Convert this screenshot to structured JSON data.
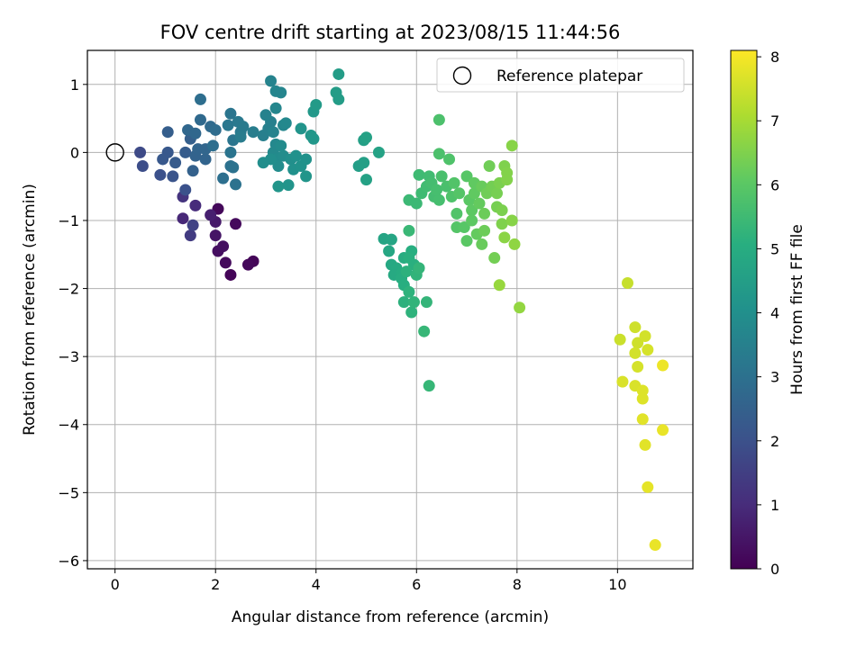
{
  "chart_data": {
    "type": "scatter",
    "title": "FOV centre drift starting at 2023/08/15 11:44:56",
    "xlabel": "Angular distance from reference (arcmin)",
    "ylabel": "Rotation from reference (arcmin)",
    "xlim": [
      -0.55,
      11.5
    ],
    "ylim": [
      -6.12,
      1.5
    ],
    "xticks": [
      0,
      2,
      4,
      6,
      8,
      10
    ],
    "yticks": [
      1,
      0,
      -1,
      -2,
      -3,
      -4,
      -5,
      -6
    ],
    "xtick_labels": [
      "0",
      "2",
      "4",
      "6",
      "8",
      "10"
    ],
    "ytick_labels": [
      "1",
      "0",
      "−1",
      "−2",
      "−3",
      "−4",
      "−5",
      "−6"
    ],
    "grid": true,
    "legend": {
      "placement": "top-right",
      "entries": [
        {
          "label": "Reference platepar",
          "marker": "open-circle"
        }
      ]
    },
    "colorbar": {
      "label": "Hours from first FF file",
      "colormap": "viridis",
      "range": [
        0,
        8.1
      ],
      "ticks": [
        0,
        1,
        2,
        3,
        4,
        5,
        6,
        7,
        8
      ],
      "tick_labels": [
        "0",
        "1",
        "2",
        "3",
        "4",
        "5",
        "6",
        "7",
        "8"
      ]
    },
    "reference_point": {
      "x": 0,
      "y": 0
    },
    "points": [
      [
        2.05,
        -0.83,
        0.15
      ],
      [
        2.4,
        -1.05,
        0.2
      ],
      [
        2.3,
        -1.8,
        0.1
      ],
      [
        2.75,
        -1.6,
        0.1
      ],
      [
        2.65,
        -1.65,
        0.15
      ],
      [
        2.2,
        -1.62,
        0.2
      ],
      [
        2.05,
        -1.45,
        0.3
      ],
      [
        2.15,
        -1.38,
        0.35
      ],
      [
        2.0,
        -1.22,
        0.45
      ],
      [
        2.0,
        -1.02,
        0.55
      ],
      [
        1.9,
        -0.92,
        0.7
      ],
      [
        1.35,
        -0.97,
        0.9
      ],
      [
        1.6,
        -0.78,
        1.0
      ],
      [
        1.35,
        -0.65,
        1.2
      ],
      [
        1.5,
        -1.22,
        1.4
      ],
      [
        1.55,
        -1.07,
        1.6
      ],
      [
        0.5,
        0.0,
        1.8
      ],
      [
        0.55,
        -0.2,
        1.9
      ],
      [
        0.9,
        -0.33,
        2.0
      ],
      [
        1.4,
        -0.55,
        2.0
      ],
      [
        1.15,
        -0.35,
        2.1
      ],
      [
        0.95,
        -0.1,
        2.2
      ],
      [
        1.05,
        0.0,
        2.2
      ],
      [
        1.2,
        -0.15,
        2.3
      ],
      [
        1.4,
        0.0,
        2.35
      ],
      [
        1.05,
        0.3,
        2.4
      ],
      [
        1.5,
        0.2,
        2.45
      ],
      [
        1.55,
        -0.27,
        2.5
      ],
      [
        1.6,
        -0.05,
        2.55
      ],
      [
        1.65,
        0.05,
        2.6
      ],
      [
        1.8,
        -0.1,
        2.6
      ],
      [
        1.8,
        0.05,
        2.65
      ],
      [
        1.45,
        0.33,
        2.7
      ],
      [
        1.6,
        0.28,
        2.7
      ],
      [
        1.7,
        0.48,
        2.75
      ],
      [
        1.9,
        0.38,
        2.8
      ],
      [
        2.0,
        0.33,
        2.85
      ],
      [
        1.95,
        0.1,
        2.9
      ],
      [
        1.7,
        0.78,
        2.9
      ],
      [
        2.15,
        -0.38,
        2.95
      ],
      [
        2.3,
        -0.2,
        3.0
      ],
      [
        2.35,
        -0.22,
        3.05
      ],
      [
        2.4,
        -0.47,
        3.05
      ],
      [
        2.3,
        0.0,
        3.1
      ],
      [
        2.35,
        0.18,
        3.15
      ],
      [
        2.3,
        0.57,
        3.15
      ],
      [
        2.25,
        0.4,
        3.2
      ],
      [
        2.45,
        0.45,
        3.25
      ],
      [
        2.5,
        0.3,
        3.25
      ],
      [
        2.55,
        0.38,
        3.3
      ],
      [
        2.5,
        0.23,
        3.35
      ],
      [
        2.75,
        0.3,
        3.4
      ],
      [
        2.95,
        0.25,
        3.45
      ],
      [
        3.05,
        0.35,
        3.5
      ],
      [
        3.1,
        0.45,
        3.5
      ],
      [
        3.0,
        0.55,
        3.55
      ],
      [
        3.15,
        0.3,
        3.6
      ],
      [
        3.1,
        1.05,
        3.6
      ],
      [
        3.2,
        0.9,
        3.65
      ],
      [
        3.3,
        0.88,
        3.65
      ],
      [
        3.2,
        0.65,
        3.7
      ],
      [
        3.35,
        0.4,
        3.7
      ],
      [
        3.4,
        0.43,
        3.75
      ],
      [
        3.2,
        0.12,
        3.75
      ],
      [
        3.15,
        0.0,
        3.8
      ],
      [
        3.2,
        -0.1,
        3.85
      ],
      [
        3.3,
        0.1,
        3.85
      ],
      [
        3.35,
        -0.05,
        3.9
      ],
      [
        3.25,
        -0.2,
        3.9
      ],
      [
        3.1,
        -0.1,
        3.95
      ],
      [
        2.95,
        -0.15,
        3.95
      ],
      [
        3.5,
        -0.1,
        4.0
      ],
      [
        3.6,
        -0.05,
        4.05
      ],
      [
        3.55,
        -0.25,
        4.05
      ],
      [
        3.7,
        -0.2,
        4.1
      ],
      [
        3.8,
        -0.1,
        4.1
      ],
      [
        3.7,
        0.35,
        4.15
      ],
      [
        3.45,
        -0.48,
        4.15
      ],
      [
        3.25,
        -0.5,
        4.2
      ],
      [
        3.8,
        -0.35,
        4.2
      ],
      [
        3.95,
        0.2,
        4.25
      ],
      [
        3.9,
        0.25,
        4.25
      ],
      [
        3.95,
        0.6,
        4.3
      ],
      [
        4.0,
        0.7,
        4.35
      ],
      [
        4.4,
        0.88,
        4.45
      ],
      [
        4.45,
        0.78,
        4.45
      ],
      [
        4.45,
        1.15,
        4.45
      ],
      [
        4.85,
        -0.2,
        4.5
      ],
      [
        4.95,
        -0.15,
        4.55
      ],
      [
        4.95,
        0.18,
        4.55
      ],
      [
        5.0,
        0.22,
        4.6
      ],
      [
        5.0,
        -0.4,
        4.6
      ],
      [
        5.25,
        0.0,
        4.65
      ],
      [
        5.35,
        -1.27,
        4.7
      ],
      [
        5.5,
        -1.28,
        4.75
      ],
      [
        5.45,
        -1.45,
        4.8
      ],
      [
        5.5,
        -1.65,
        4.85
      ],
      [
        5.6,
        -1.7,
        4.9
      ],
      [
        5.55,
        -1.8,
        4.9
      ],
      [
        5.7,
        -1.78,
        4.95
      ],
      [
        5.75,
        -1.55,
        5.0
      ],
      [
        5.7,
        -1.85,
        5.0
      ],
      [
        5.75,
        -1.95,
        5.05
      ],
      [
        5.9,
        -1.45,
        5.05
      ],
      [
        5.85,
        -1.55,
        5.1
      ],
      [
        5.95,
        -1.65,
        5.1
      ],
      [
        5.8,
        -1.75,
        5.15
      ],
      [
        5.75,
        -2.2,
        5.15
      ],
      [
        5.85,
        -2.05,
        5.2
      ],
      [
        5.9,
        -2.35,
        5.2
      ],
      [
        5.95,
        -2.2,
        5.25
      ],
      [
        6.0,
        -1.8,
        5.25
      ],
      [
        6.05,
        -1.7,
        5.3
      ],
      [
        6.2,
        -2.2,
        5.3
      ],
      [
        6.15,
        -2.63,
        5.35
      ],
      [
        6.25,
        -3.43,
        5.35
      ],
      [
        5.85,
        -1.15,
        5.4
      ],
      [
        5.85,
        -0.7,
        5.45
      ],
      [
        6.0,
        -0.75,
        5.45
      ],
      [
        6.05,
        -0.33,
        5.5
      ],
      [
        6.1,
        -0.6,
        5.5
      ],
      [
        6.2,
        -0.5,
        5.55
      ],
      [
        6.25,
        -0.35,
        5.55
      ],
      [
        6.3,
        -0.45,
        5.6
      ],
      [
        6.35,
        -0.65,
        5.6
      ],
      [
        6.45,
        -0.7,
        5.65
      ],
      [
        6.4,
        -0.55,
        5.65
      ],
      [
        6.5,
        -0.35,
        5.7
      ],
      [
        6.6,
        -0.5,
        5.7
      ],
      [
        6.45,
        0.48,
        5.75
      ],
      [
        6.45,
        -0.02,
        5.75
      ],
      [
        6.65,
        -0.1,
        5.8
      ],
      [
        6.7,
        -0.65,
        5.8
      ],
      [
        6.75,
        -0.45,
        5.85
      ],
      [
        6.8,
        -0.9,
        5.85
      ],
      [
        6.8,
        -1.1,
        5.9
      ],
      [
        6.85,
        -0.6,
        5.9
      ],
      [
        6.95,
        -1.1,
        5.95
      ],
      [
        7.0,
        -0.35,
        5.95
      ],
      [
        7.0,
        -1.3,
        6.0
      ],
      [
        7.05,
        -0.7,
        6.0
      ],
      [
        7.1,
        -0.85,
        6.05
      ],
      [
        7.1,
        -1.0,
        6.05
      ],
      [
        7.15,
        -0.6,
        6.1
      ],
      [
        7.15,
        -0.45,
        6.1
      ],
      [
        7.2,
        -1.2,
        6.15
      ],
      [
        7.25,
        -0.75,
        6.15
      ],
      [
        7.3,
        -0.5,
        6.2
      ],
      [
        7.3,
        -1.35,
        6.2
      ],
      [
        7.35,
        -1.15,
        6.25
      ],
      [
        7.35,
        -0.9,
        6.25
      ],
      [
        7.4,
        -0.6,
        6.3
      ],
      [
        7.45,
        -0.2,
        6.3
      ],
      [
        7.5,
        -0.5,
        6.35
      ],
      [
        7.55,
        -1.55,
        6.35
      ],
      [
        7.6,
        -0.6,
        6.4
      ],
      [
        7.6,
        -0.8,
        6.4
      ],
      [
        7.65,
        -0.45,
        6.45
      ],
      [
        7.7,
        -0.85,
        6.45
      ],
      [
        7.7,
        -1.05,
        6.5
      ],
      [
        7.75,
        -0.2,
        6.5
      ],
      [
        7.8,
        -0.3,
        6.55
      ],
      [
        7.8,
        -0.4,
        6.55
      ],
      [
        7.9,
        -1.0,
        6.6
      ],
      [
        7.9,
        0.1,
        6.6
      ],
      [
        7.75,
        -1.25,
        6.65
      ],
      [
        7.95,
        -1.35,
        6.7
      ],
      [
        8.05,
        -2.28,
        6.75
      ],
      [
        7.65,
        -1.95,
        6.8
      ],
      [
        10.2,
        -1.92,
        7.4
      ],
      [
        10.05,
        -2.75,
        7.45
      ],
      [
        10.35,
        -2.57,
        7.5
      ],
      [
        10.4,
        -2.8,
        7.5
      ],
      [
        10.35,
        -2.95,
        7.55
      ],
      [
        10.55,
        -2.7,
        7.55
      ],
      [
        10.6,
        -2.9,
        7.6
      ],
      [
        10.4,
        -3.15,
        7.6
      ],
      [
        10.1,
        -3.37,
        7.65
      ],
      [
        10.35,
        -3.43,
        7.65
      ],
      [
        10.5,
        -3.5,
        7.7
      ],
      [
        10.5,
        -3.62,
        7.7
      ],
      [
        10.5,
        -3.92,
        7.75
      ],
      [
        10.55,
        -4.3,
        7.75
      ],
      [
        10.6,
        -4.92,
        7.8
      ],
      [
        10.75,
        -5.77,
        7.85
      ],
      [
        10.9,
        -4.08,
        7.85
      ],
      [
        10.9,
        -3.13,
        7.9
      ]
    ]
  }
}
